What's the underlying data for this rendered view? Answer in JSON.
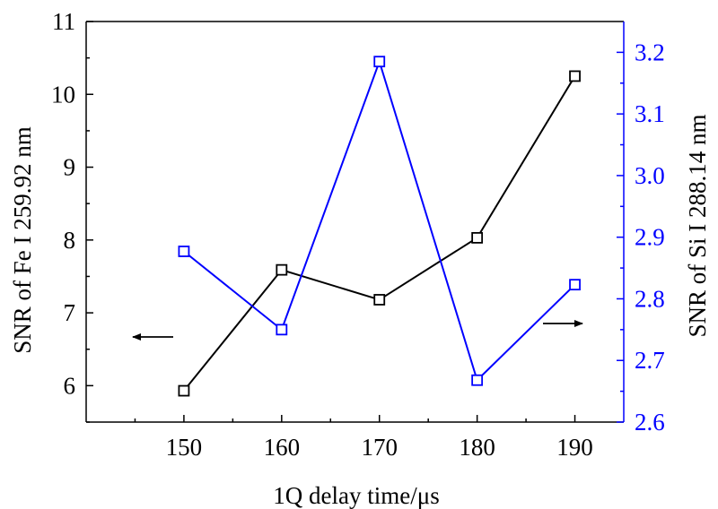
{
  "chart_data": {
    "type": "line",
    "xlabel": "1Q delay time/μs",
    "x": [
      150,
      160,
      170,
      180,
      190
    ],
    "x_ticks": [
      "150",
      "160",
      "170",
      "180",
      "190"
    ],
    "xlim": [
      140,
      195
    ],
    "y_left": {
      "label": "SNR of Fe  I  259.92 nm",
      "lim": [
        5.5,
        11
      ],
      "ticks": [
        "6",
        "7",
        "8",
        "9",
        "10",
        "11"
      ],
      "color": "#000000"
    },
    "y_right": {
      "label": "SNR of Si  I  288.14 nm",
      "lim": [
        2.6,
        3.25
      ],
      "ticks": [
        "2.6",
        "2.7",
        "2.8",
        "2.9",
        "3.0",
        "3.1",
        "3.2"
      ],
      "color": "#0000ff"
    },
    "series": [
      {
        "name": "SNR of Fe I 259.92 nm",
        "axis": "left",
        "color": "#000000",
        "values": [
          5.93,
          7.59,
          7.18,
          8.03,
          10.25
        ]
      },
      {
        "name": "SNR of Si I 288.14 nm",
        "axis": "right",
        "color": "#0000ff",
        "values": [
          2.877,
          2.75,
          3.185,
          2.668,
          2.823
        ]
      }
    ],
    "annotations": [
      {
        "type": "arrow",
        "direction": "left",
        "indicates": "left axis",
        "color": "#000000"
      },
      {
        "type": "arrow",
        "direction": "right",
        "indicates": "right axis",
        "color": "#000000"
      }
    ],
    "grid": false
  }
}
